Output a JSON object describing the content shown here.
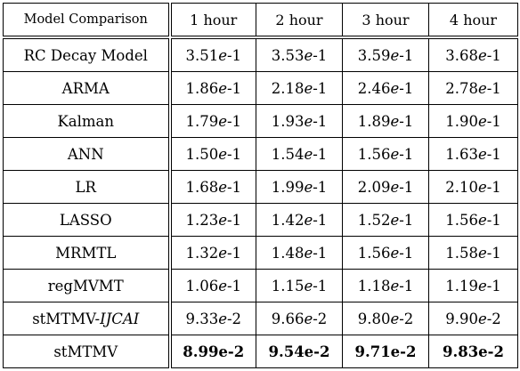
{
  "table": {
    "columns": [
      "Model Comparison",
      "1 hour",
      "2 hour",
      "3 hour",
      "4 hour"
    ],
    "rows": [
      {
        "model": "RC Decay Model",
        "model_suffix": "",
        "values": [
          "3.51",
          "3.53",
          "3.59",
          "3.68"
        ],
        "exps": [
          "-1",
          "-1",
          "-1",
          "-1"
        ]
      },
      {
        "model": "ARMA",
        "model_suffix": "",
        "values": [
          "1.86",
          "2.18",
          "2.46",
          "2.78"
        ],
        "exps": [
          "-1",
          "-1",
          "-1",
          "-1"
        ]
      },
      {
        "model": "Kalman",
        "model_suffix": "",
        "values": [
          "1.79",
          "1.93",
          "1.89",
          "1.90"
        ],
        "exps": [
          "-1",
          "-1",
          "-1",
          "-1"
        ]
      },
      {
        "model": "ANN",
        "model_suffix": "",
        "values": [
          "1.50",
          "1.54",
          "1.56",
          "1.63"
        ],
        "exps": [
          "-1",
          "-1",
          "-1",
          "-1"
        ]
      },
      {
        "model": "LR",
        "model_suffix": "",
        "values": [
          "1.68",
          "1.99",
          "2.09",
          "2.10"
        ],
        "exps": [
          "-1",
          "-1",
          "-1",
          "-1"
        ]
      },
      {
        "model": "LASSO",
        "model_suffix": "",
        "values": [
          "1.23",
          "1.42",
          "1.52",
          "1.56"
        ],
        "exps": [
          "-1",
          "-1",
          "-1",
          "-1"
        ]
      },
      {
        "model": "MRMTL",
        "model_suffix": "",
        "values": [
          "1.32",
          "1.48",
          "1.56",
          "1.58"
        ],
        "exps": [
          "-1",
          "-1",
          "-1",
          "-1"
        ]
      },
      {
        "model": "regMVMT",
        "model_suffix": "",
        "values": [
          "1.06",
          "1.15",
          "1.18",
          "1.19"
        ],
        "exps": [
          "-1",
          "-1",
          "-1",
          "-1"
        ]
      },
      {
        "model": "stMTMV-",
        "model_suffix": "IJCAI",
        "values": [
          "9.33",
          "9.66",
          "9.80",
          "9.90"
        ],
        "exps": [
          "-2",
          "-2",
          "-2",
          "-2"
        ]
      },
      {
        "model": "stMTMV",
        "model_suffix": "",
        "values": [
          "8.99e-2",
          "9.54e-2",
          "9.71e-2",
          "9.83e-2"
        ],
        "exps": [
          "",
          "",
          "",
          ""
        ],
        "best": true
      }
    ]
  }
}
